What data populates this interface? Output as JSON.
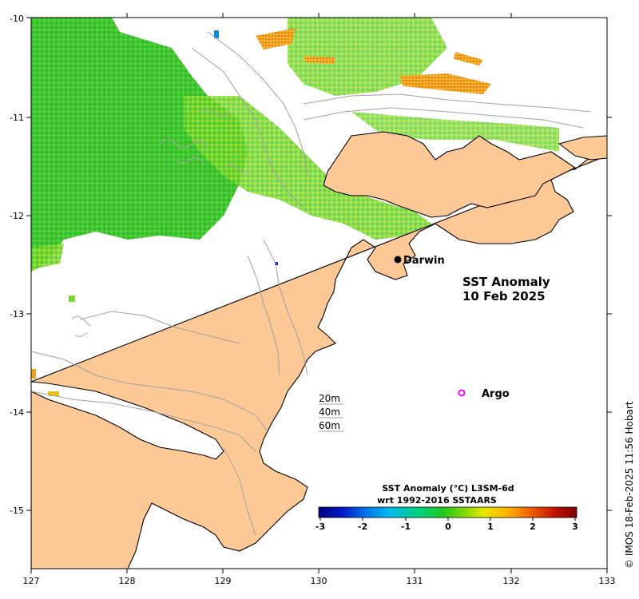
{
  "map": {
    "title_line1": "SST Anomaly",
    "title_line2": "10 Feb 2025",
    "credit": "© IMOS 18-Feb-2025 11:56 Hobart",
    "lon_range": [
      127,
      133
    ],
    "lat_range": [
      -15.6,
      -10
    ],
    "x_ticks": [
      "127",
      "128",
      "129",
      "130",
      "131",
      "132",
      "133"
    ],
    "y_ticks": [
      "-10",
      "-11",
      "-12",
      "-13",
      "-14",
      "-15"
    ],
    "places": [
      {
        "name": "Darwin",
        "lon": 130.83,
        "lat": -12.45,
        "kind": "city"
      },
      {
        "name": "Argo",
        "lon": 131.5,
        "lat": -13.8,
        "kind": "argo"
      }
    ],
    "depth_contours": [
      "20m",
      "40m",
      "60m"
    ],
    "colors": {
      "land": "#fcc896",
      "ocean": "#ffffff",
      "coast": "#000000",
      "contour": "#a0a0a0",
      "argo": "#ff00ff"
    }
  },
  "colorbar": {
    "title_line1": "SST Anomaly (°C) L3SM-6d",
    "title_line2": "wrt 1992-2016 SSTAARS",
    "ticks": [
      "-3",
      "-2",
      "-1",
      "0",
      "1",
      "2",
      "3"
    ],
    "range": [
      -3,
      3
    ],
    "stops": [
      "#00007a",
      "#0018c8",
      "#0070e8",
      "#00b8f0",
      "#00d08a",
      "#1ec81e",
      "#7ad80a",
      "#e8e800",
      "#ffb400",
      "#f06000",
      "#c81400",
      "#7a0000"
    ]
  }
}
